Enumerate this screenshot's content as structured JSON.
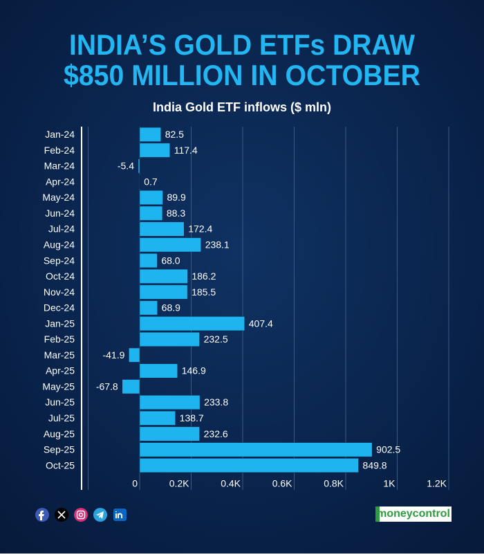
{
  "chart_data": {
    "type": "barh",
    "title": [
      "INDIA’S GOLD ETFs DRAW",
      "$850 MILLION IN OCTOBER"
    ],
    "subtitle": "India Gold ETF inflows ($ mln)",
    "categories": [
      "Jan-24",
      "Feb-24",
      "Mar-24",
      "Apr-24",
      "May-24",
      "Jun-24",
      "Jul-24",
      "Aug-24",
      "Sep-24",
      "Oct-24",
      "Nov-24",
      "Dec-24",
      "Jan-25",
      "Feb-25",
      "Mar-25",
      "Apr-25",
      "May-25",
      "Jun-25",
      "Jul-25",
      "Aug-25",
      "Sep-25",
      "Oct-25"
    ],
    "values": [
      82.5,
      117.4,
      -5.4,
      0.7,
      89.9,
      88.3,
      172.4,
      238.1,
      68.0,
      186.2,
      185.5,
      68.9,
      407.4,
      232.5,
      -41.9,
      146.9,
      -67.8,
      233.8,
      138.7,
      232.6,
      902.5,
      849.8
    ],
    "value_labels": [
      "82.5",
      "117.4",
      "-5.4",
      "0.7",
      "89.9",
      "88.3",
      "172.4",
      "238.1",
      "68.0",
      "186.2",
      "185.5",
      "68.9",
      "407.4",
      "232.5",
      "-41.9",
      "146.9",
      "-67.8",
      "233.8",
      "138.7",
      "232.6",
      "902.5",
      "849.8"
    ],
    "color": "#1eb4f0",
    "xlim": [
      -200,
      1200
    ],
    "xticks": [
      0,
      {
        "value": 200,
        "label": "0.2K"
      },
      {
        "value": 400,
        "label": "0.4K"
      },
      {
        "value": 600,
        "label": "0.6K"
      },
      {
        "value": 800,
        "label": "0.8K"
      },
      {
        "value": 1000,
        "label": "1K"
      },
      {
        "value": 1200,
        "label": "1.2K"
      }
    ],
    "grid": true
  },
  "footer": {
    "brand": "moneycontrol"
  }
}
